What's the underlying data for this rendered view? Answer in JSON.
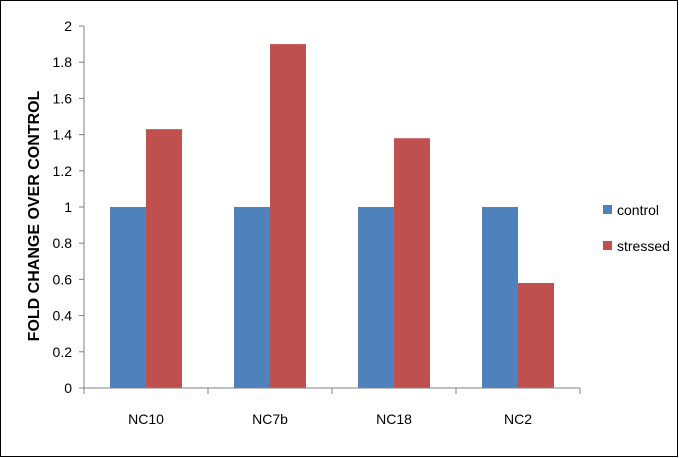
{
  "chart_data": {
    "type": "bar",
    "title": "",
    "xlabel": "",
    "ylabel": "FOLD CHANGE OVER CONTROL",
    "categories": [
      "NC10",
      "NC7b",
      "NC18",
      "NC2"
    ],
    "series": [
      {
        "name": "control",
        "values": [
          1,
          1,
          1,
          1
        ],
        "color": "#4F81BD"
      },
      {
        "name": "stressed",
        "values": [
          1.43,
          1.9,
          1.38,
          0.58
        ],
        "color": "#C0504D"
      }
    ],
    "ylim": [
      0,
      2
    ],
    "yticks": [
      "0",
      "0.2",
      "0.4",
      "0.6",
      "0.8",
      "1",
      "1.2",
      "1.4",
      "1.6",
      "1.8",
      "2"
    ],
    "grid": false,
    "legend_position": "right"
  }
}
